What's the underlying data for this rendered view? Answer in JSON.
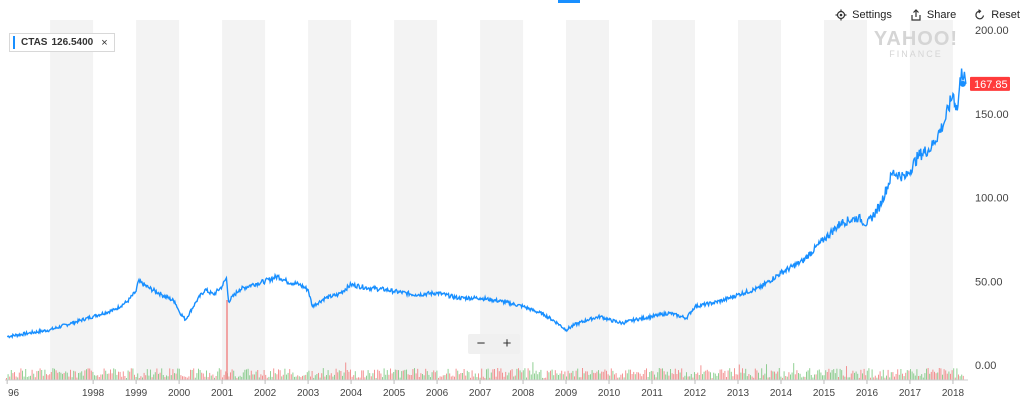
{
  "toolbar": {
    "settings_label": "Settings",
    "share_label": "Share",
    "reset_label": "Reset"
  },
  "legend": {
    "ticker": "CTAS",
    "value": "126.5400",
    "close_glyph": "×",
    "color": "#188fff"
  },
  "watermark": {
    "brand": "YAHOO!",
    "sub": "FINANCE"
  },
  "zoom": {
    "minus": "−",
    "plus": "+"
  },
  "last_price_label": "167.85",
  "colors": {
    "line": "#188fff",
    "price_badge": "#ff3b3b",
    "vol_up": "#6cc070",
    "vol_down": "#f07070",
    "band": "#f3f3f3"
  },
  "chart_data": {
    "type": "line",
    "x_start": 1996.0,
    "x_end": 2018.3,
    "ylim": [
      0,
      200
    ],
    "yticks": [
      "200.00",
      "150.00",
      "100.00",
      "50.00",
      "0.00"
    ],
    "ytick_values": [
      200,
      150,
      100,
      50,
      0
    ],
    "xticks": [
      "96",
      "1998",
      "1999",
      "2000",
      "2001",
      "2002",
      "2003",
      "2004",
      "2005",
      "2006",
      "2007",
      "2008",
      "2009",
      "2010",
      "2011",
      "2012",
      "2013",
      "2014",
      "2015",
      "2016",
      "2017",
      "2018"
    ],
    "xtick_values": [
      1996,
      1998,
      1999,
      2000,
      2001,
      2002,
      2003,
      2004,
      2005,
      2006,
      2007,
      2008,
      2009,
      2010,
      2011,
      2012,
      2013,
      2014,
      2015,
      2016,
      2017,
      2018
    ],
    "series": [
      {
        "values": [
          [
            1996.0,
            17
          ],
          [
            1996.5,
            19
          ],
          [
            1997.0,
            21
          ],
          [
            1997.5,
            25
          ],
          [
            1998.0,
            29
          ],
          [
            1998.5,
            33
          ],
          [
            1998.8,
            38
          ],
          [
            1999.0,
            44
          ],
          [
            1999.05,
            50
          ],
          [
            1999.3,
            46
          ],
          [
            1999.6,
            42
          ],
          [
            1999.9,
            38
          ],
          [
            2000.0,
            32
          ],
          [
            2000.15,
            27
          ],
          [
            2000.4,
            38
          ],
          [
            2000.6,
            45
          ],
          [
            2000.8,
            42
          ],
          [
            2001.0,
            47
          ],
          [
            2001.1,
            52
          ],
          [
            2001.15,
            38
          ],
          [
            2001.4,
            45
          ],
          [
            2001.7,
            48
          ],
          [
            2002.0,
            50
          ],
          [
            2002.3,
            53
          ],
          [
            2002.5,
            50
          ],
          [
            2002.8,
            48
          ],
          [
            2003.0,
            45
          ],
          [
            2003.1,
            35
          ],
          [
            2003.4,
            40
          ],
          [
            2003.7,
            42
          ],
          [
            2004.0,
            48
          ],
          [
            2004.4,
            46
          ],
          [
            2004.8,
            45
          ],
          [
            2005.0,
            44
          ],
          [
            2005.5,
            42
          ],
          [
            2006.0,
            43
          ],
          [
            2006.5,
            40
          ],
          [
            2007.0,
            40
          ],
          [
            2007.5,
            38
          ],
          [
            2008.0,
            35
          ],
          [
            2008.5,
            30
          ],
          [
            2008.8,
            25
          ],
          [
            2009.0,
            21
          ],
          [
            2009.2,
            24
          ],
          [
            2009.5,
            27
          ],
          [
            2009.8,
            29
          ],
          [
            2010.0,
            27
          ],
          [
            2010.3,
            25
          ],
          [
            2010.6,
            27
          ],
          [
            2011.0,
            29
          ],
          [
            2011.4,
            31
          ],
          [
            2011.8,
            28
          ],
          [
            2012.0,
            35
          ],
          [
            2012.4,
            37
          ],
          [
            2012.7,
            39
          ],
          [
            2013.0,
            42
          ],
          [
            2013.5,
            46
          ],
          [
            2014.0,
            55
          ],
          [
            2014.5,
            62
          ],
          [
            2015.0,
            75
          ],
          [
            2015.4,
            85
          ],
          [
            2015.8,
            88
          ],
          [
            2016.0,
            84
          ],
          [
            2016.3,
            95
          ],
          [
            2016.6,
            115
          ],
          [
            2016.9,
            112
          ],
          [
            2017.2,
            125
          ],
          [
            2017.5,
            130
          ],
          [
            2017.8,
            145
          ],
          [
            2018.0,
            162
          ],
          [
            2018.1,
            152
          ],
          [
            2018.2,
            177
          ],
          [
            2018.3,
            167.85
          ]
        ]
      }
    ],
    "volume_note": "volume bars shown in lower band (no scale printed)"
  }
}
